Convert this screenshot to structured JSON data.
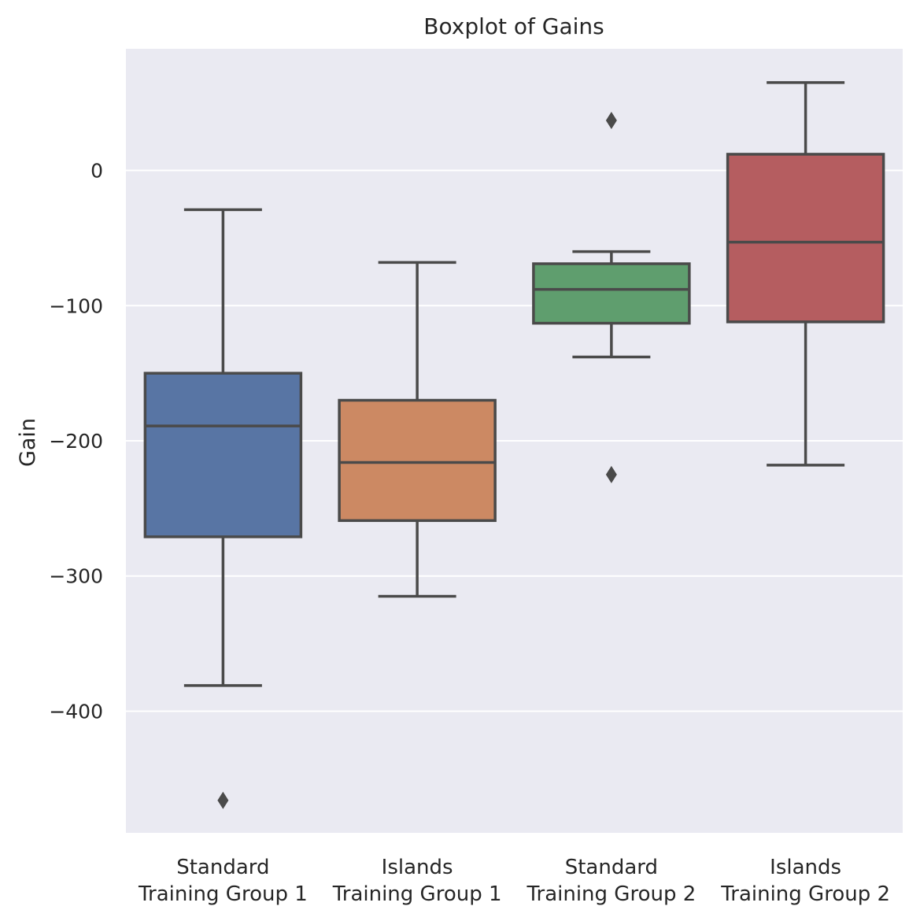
{
  "chart_data": {
    "type": "boxplot",
    "title": "Boxplot of Gains",
    "xlabel": "",
    "ylabel": "Gain",
    "ylim": [
      -490,
      90
    ],
    "yticks": [
      0,
      -100,
      -200,
      -300,
      -400
    ],
    "ytick_labels": [
      "0",
      "−100",
      "−200",
      "−300",
      "−400"
    ],
    "grid": true,
    "categories": [
      {
        "line1": "Standard",
        "line2": "Training Group 1"
      },
      {
        "line1": "Islands",
        "line2": "Training Group 1"
      },
      {
        "line1": "Standard",
        "line2": "Training Group 2"
      },
      {
        "line1": "Islands",
        "line2": "Training Group 2"
      }
    ],
    "boxes": [
      {
        "whisker_low": -381,
        "q1": -271,
        "median": -189,
        "q3": -150,
        "whisker_high": -29,
        "outliers": [
          -466
        ],
        "color": "#5875a4"
      },
      {
        "whisker_low": -315,
        "q1": -259,
        "median": -216,
        "q3": -170,
        "whisker_high": -68,
        "outliers": [],
        "color": "#cc8963"
      },
      {
        "whisker_low": -138,
        "q1": -113,
        "median": -88,
        "q3": -69,
        "whisker_high": -60,
        "outliers": [
          37,
          -225
        ],
        "color": "#5f9e6e"
      },
      {
        "whisker_low": -218,
        "q1": -112,
        "median": -53,
        "q3": 12,
        "whisker_high": 65,
        "outliers": [],
        "color": "#b55d60"
      }
    ],
    "colors": {
      "plot_background": "#eaeaf2",
      "grid": "#ffffff",
      "line": "#4a4a4a",
      "text": "#262626"
    }
  }
}
